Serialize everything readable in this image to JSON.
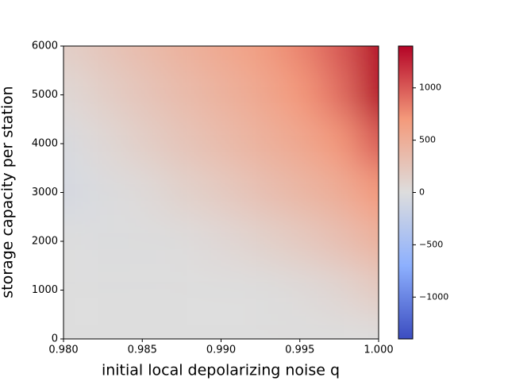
{
  "chart_data": {
    "type": "heatmap",
    "xlabel": "initial local depolarizing noise q",
    "ylabel": "storage capacity per station",
    "x": [
      0.98,
      0.9825,
      0.985,
      0.9875,
      0.99,
      0.9925,
      0.995,
      0.9975,
      1.0
    ],
    "y": [
      0,
      1000,
      2000,
      3000,
      4000,
      5000,
      6000
    ],
    "z": [
      [
        0,
        0,
        0,
        0,
        0,
        0,
        0,
        0,
        0
      ],
      [
        0,
        0,
        0,
        0,
        0,
        0,
        30,
        80,
        200
      ],
      [
        0,
        -20,
        -10,
        10,
        60,
        120,
        200,
        300,
        450
      ],
      [
        -80,
        -30,
        30,
        120,
        200,
        300,
        400,
        500,
        700
      ],
      [
        -50,
        50,
        150,
        250,
        350,
        450,
        550,
        700,
        1000
      ],
      [
        50,
        150,
        250,
        350,
        450,
        550,
        700,
        900,
        1400
      ],
      [
        150,
        250,
        350,
        450,
        550,
        650,
        800,
        1000,
        1400
      ]
    ],
    "xlim": [
      0.98,
      1.0
    ],
    "xticks": [
      {
        "value": 0.98,
        "label": "0.980"
      },
      {
        "value": 0.985,
        "label": "0.985"
      },
      {
        "value": 0.99,
        "label": "0.990"
      },
      {
        "value": 0.995,
        "label": "0.995"
      },
      {
        "value": 1.0,
        "label": "1.000"
      }
    ],
    "ylim": [
      0,
      6000
    ],
    "yticks": [
      0,
      1000,
      2000,
      3000,
      4000,
      5000,
      6000
    ],
    "clim": [
      -1400,
      1400
    ],
    "cticks": [
      {
        "value": -1000,
        "label": "−1000"
      },
      {
        "value": -500,
        "label": "−500"
      },
      0,
      500,
      1000
    ],
    "colormap": [
      "#3b4cc0",
      "#8db0fe",
      "#dddddd",
      "#f49a7b",
      "#b40426"
    ]
  }
}
